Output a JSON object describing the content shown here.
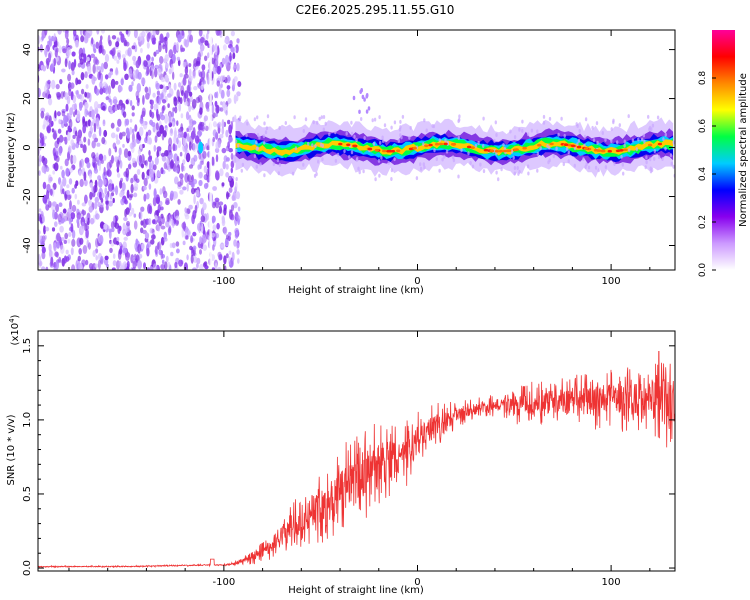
{
  "title": "C2E6.2025.295.11.55.G10",
  "chart_data": [
    {
      "type": "heatmap",
      "name": "spectrogram",
      "xlabel": "Height of straight line (km)",
      "ylabel": "Frequency (Hz)",
      "xlim": [
        -196,
        133
      ],
      "ylim": [
        -50,
        48
      ],
      "xticks": [
        -100,
        0,
        100
      ],
      "yticks": [
        -40,
        -20,
        0,
        20,
        40
      ],
      "noise_region_x": [
        -196,
        -92
      ],
      "signal_frequency_hz": 0,
      "colorbar": {
        "label": "Normalized spectral amplitude",
        "range": [
          0,
          1
        ],
        "ticks": [
          "0.0",
          "0.2",
          "0.4",
          "0.6",
          "0.8"
        ],
        "colors": [
          "#ffffff",
          "#cc99ff",
          "#8800ee",
          "#0000ff",
          "#00ccff",
          "#00ff44",
          "#ffff00",
          "#ff8800",
          "#ff0000",
          "#ff0099"
        ]
      }
    },
    {
      "type": "line",
      "name": "snr",
      "xlabel": "Height of straight line (km)",
      "ylabel": "SNR (10 * v/v)",
      "scale_label": "(x10",
      "scale_exponent": "4",
      "xlim": [
        -196,
        133
      ],
      "ylim": [
        -0.02,
        1.6
      ],
      "xticks": [
        -100,
        0,
        100
      ],
      "yticks": [
        "0.0",
        "0.5",
        "1.0",
        "1.5"
      ],
      "color": "#ee3333",
      "x": [
        -196,
        -150,
        -110,
        -100,
        -92,
        -85,
        -80,
        -75,
        -70,
        -65,
        -60,
        -55,
        -50,
        -45,
        -40,
        -35,
        -30,
        -25,
        -20,
        -15,
        -10,
        -5,
        0,
        5,
        10,
        15,
        20,
        25,
        30,
        35,
        40,
        45,
        50,
        55,
        60,
        65,
        70,
        75,
        80,
        85,
        90,
        95,
        100,
        105,
        110,
        115,
        120,
        125,
        130,
        133
      ],
      "y": [
        0.01,
        0.01,
        0.02,
        0.02,
        0.04,
        0.07,
        0.11,
        0.16,
        0.22,
        0.28,
        0.33,
        0.38,
        0.42,
        0.46,
        0.5,
        0.56,
        0.62,
        0.66,
        0.7,
        0.72,
        0.74,
        0.78,
        0.86,
        0.92,
        0.97,
        1.0,
        1.03,
        1.06,
        1.08,
        1.09,
        1.1,
        1.1,
        1.09,
        1.1,
        1.11,
        1.12,
        1.12,
        1.12,
        1.13,
        1.13,
        1.12,
        1.13,
        1.14,
        1.14,
        1.15,
        1.14,
        1.14,
        1.15,
        1.15,
        1.15
      ],
      "noise_amplitude": [
        0.005,
        0.005,
        0.006,
        0.006,
        0.02,
        0.05,
        0.07,
        0.1,
        0.14,
        0.17,
        0.2,
        0.22,
        0.25,
        0.28,
        0.3,
        0.32,
        0.33,
        0.32,
        0.3,
        0.28,
        0.25,
        0.22,
        0.2,
        0.17,
        0.15,
        0.12,
        0.1,
        0.08,
        0.07,
        0.07,
        0.08,
        0.1,
        0.12,
        0.14,
        0.15,
        0.16,
        0.16,
        0.17,
        0.18,
        0.18,
        0.19,
        0.2,
        0.2,
        0.22,
        0.25,
        0.28,
        0.3,
        0.32,
        0.35,
        0.35
      ]
    }
  ]
}
